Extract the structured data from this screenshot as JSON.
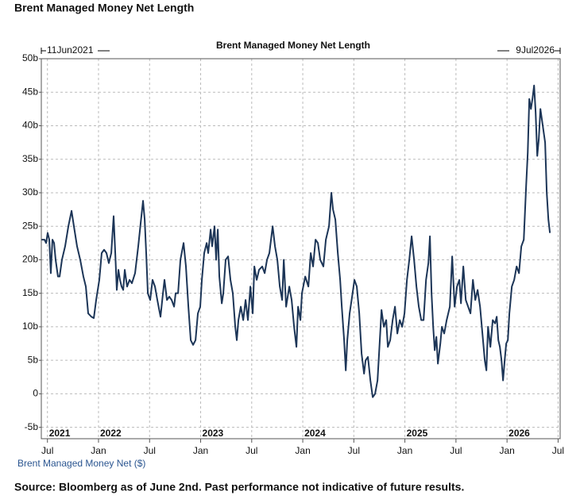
{
  "chart_data": {
    "type": "line",
    "header": "Brent Managed Money Net Length",
    "title": "Brent Managed Money Net Length",
    "start_label": "11Jun2021",
    "end_label": "9Jul2026",
    "source": "Source: Bloomberg as of June 2nd. Past performance not indicative of future results.",
    "xlim": [
      2021.44,
      2026.52
    ],
    "ylim": [
      -6.7,
      50
    ],
    "yticks": [
      {
        "value": 50,
        "label": "50b"
      },
      {
        "value": 45,
        "label": "45b"
      },
      {
        "value": 40,
        "label": "40b"
      },
      {
        "value": 35,
        "label": "35b"
      },
      {
        "value": 30,
        "label": "30b"
      },
      {
        "value": 25,
        "label": "25b"
      },
      {
        "value": 20,
        "label": "20b"
      },
      {
        "value": 15,
        "label": "15b"
      },
      {
        "value": 10,
        "label": "10b"
      },
      {
        "value": 5,
        "label": "5b"
      },
      0,
      {
        "value": -5,
        "label": "-5b"
      }
    ],
    "xticks": [
      {
        "value": 2021.5,
        "label": "Jul"
      },
      {
        "value": 2022,
        "label": "Jan"
      },
      {
        "value": 2022.5,
        "label": "Jul"
      },
      {
        "value": 2023,
        "label": "Jan"
      },
      {
        "value": 2023.5,
        "label": "Jul"
      },
      {
        "value": 2024,
        "label": "Jan"
      },
      {
        "value": 2024.5,
        "label": "Jul"
      },
      {
        "value": 2025,
        "label": "Jan"
      },
      {
        "value": 2025.5,
        "label": "Jul"
      },
      {
        "value": 2026,
        "label": "Jan"
      },
      {
        "value": 2026.5,
        "label": "Jul"
      }
    ],
    "year_ticks": [
      {
        "value": 2021.5,
        "label": "2021"
      },
      2022,
      2023,
      2024,
      2025,
      2026
    ],
    "grid": true,
    "x": [
      2021.44,
      2021.471,
      2021.487,
      2021.502,
      2021.518,
      2021.533,
      2021.549,
      2021.565,
      2021.58,
      2021.603,
      2021.619,
      2021.642,
      2021.673,
      2021.705,
      2021.736,
      2021.759,
      2021.79,
      2021.821,
      2021.852,
      2021.876,
      2021.899,
      2021.93,
      2021.954,
      2021.977,
      2022.008,
      2022.031,
      2022.055,
      2022.078,
      2022.101,
      2022.125,
      2022.148,
      2022.164,
      2022.179,
      2022.195,
      2022.21,
      2022.226,
      2022.242,
      2022.257,
      2022.28,
      2022.304,
      2022.327,
      2022.358,
      2022.389,
      2022.413,
      2022.436,
      2022.452,
      2022.467,
      2022.483,
      2022.506,
      2022.529,
      2022.553,
      2022.576,
      2022.607,
      2022.631,
      2022.646,
      2022.67,
      2022.693,
      2022.716,
      2022.74,
      2022.755,
      2022.779,
      2022.802,
      2022.833,
      2022.856,
      2022.88,
      2022.903,
      2022.926,
      2022.95,
      2022.973,
      2022.996,
      2023.012,
      2023.035,
      2023.059,
      2023.074,
      2023.098,
      2023.113,
      2023.136,
      2023.152,
      2023.168,
      2023.183,
      2023.207,
      2023.222,
      2023.245,
      2023.269,
      2023.292,
      2023.315,
      2023.339,
      2023.354,
      2023.37,
      2023.393,
      2023.417,
      2023.44,
      2023.463,
      2023.487,
      2023.51,
      2023.526,
      2023.549,
      2023.572,
      2023.603,
      2023.627,
      2023.65,
      2023.673,
      2023.705,
      2023.728,
      2023.751,
      2023.775,
      2023.798,
      2023.814,
      2023.837,
      2023.868,
      2023.891,
      2023.915,
      2023.938,
      2023.954,
      2023.977,
      2023.992,
      2024.024,
      2024.055,
      2024.078,
      2024.101,
      2024.125,
      2024.148,
      2024.171,
      2024.202,
      2024.226,
      2024.257,
      2024.28,
      2024.296,
      2024.319,
      2024.343,
      2024.366,
      2024.382,
      2024.405,
      2024.421,
      2024.436,
      2024.459,
      2024.483,
      2024.506,
      2024.529,
      2024.553,
      2024.576,
      2024.6,
      2024.615,
      2024.638,
      2024.662,
      2024.685,
      2024.708,
      2024.732,
      2024.747,
      2024.771,
      2024.794,
      2024.817,
      2024.833,
      2024.856,
      2024.88,
      2024.903,
      2024.926,
      2024.95,
      2024.973,
      2024.996,
      2025.02,
      2025.043,
      2025.066,
      2025.09,
      2025.113,
      2025.136,
      2025.16,
      2025.183,
      2025.207,
      2025.23,
      2025.245,
      2025.261,
      2025.277,
      2025.292,
      2025.308,
      2025.323,
      2025.347,
      2025.362,
      2025.385,
      2025.409,
      2025.44,
      2025.463,
      2025.487,
      2025.51,
      2025.533,
      2025.549,
      2025.572,
      2025.596,
      2025.619,
      2025.642,
      2025.666,
      2025.689,
      2025.712,
      2025.736,
      2025.759,
      2025.782,
      2025.798,
      2025.814,
      2025.837,
      2025.86,
      2025.883,
      2025.899,
      2025.915,
      2025.93,
      2025.946,
      2025.961,
      2025.977,
      2025.992,
      2026.008,
      2026.023,
      2026.047,
      2026.07,
      2026.094,
      2026.117,
      2026.14,
      2026.164,
      2026.187,
      2026.203,
      2026.218,
      2026.234,
      2026.249,
      2026.265,
      2026.28,
      2026.296,
      2026.311,
      2026.327,
      2026.35,
      2026.373,
      2026.389,
      2026.405,
      2026.42
    ],
    "series": [
      {
        "name": "Brent Managed Money Net ($)",
        "color": "#1c3557",
        "values": [
          23,
          23,
          22.5,
          24,
          23,
          18,
          23,
          22.5,
          20,
          17.5,
          17.5,
          20,
          22,
          25,
          27.3,
          25,
          22,
          20,
          17.5,
          16,
          12,
          11.5,
          11.3,
          14,
          17,
          21,
          21.5,
          21,
          19.5,
          21,
          26.5,
          21,
          15.5,
          18.5,
          17,
          16,
          15.5,
          18.5,
          16,
          17,
          16.5,
          18,
          22,
          25.5,
          28.8,
          26,
          21,
          15,
          14,
          17,
          16,
          14,
          11.5,
          15,
          17,
          14,
          14.5,
          14,
          13,
          15,
          15,
          20,
          22.5,
          19,
          13,
          8,
          7.3,
          8,
          12,
          13,
          17,
          21,
          22.5,
          21,
          24.5,
          22,
          25,
          20,
          24.5,
          17.5,
          13.5,
          15,
          20,
          20.5,
          17,
          15,
          10,
          8,
          11,
          13,
          11,
          14,
          11,
          16,
          12,
          19,
          17,
          18.5,
          19,
          18,
          20,
          21,
          25,
          22,
          20,
          16,
          14,
          20,
          13,
          16,
          14,
          10,
          7,
          13,
          11,
          15,
          17.5,
          16,
          21,
          19,
          23,
          22.5,
          20,
          19,
          23,
          25,
          30,
          27.5,
          26,
          21,
          17,
          13,
          8,
          3.5,
          8,
          12,
          14.5,
          17,
          16,
          12,
          6,
          3,
          5,
          5.5,
          2,
          -0.5,
          0,
          2,
          6,
          12.5,
          10,
          11,
          7,
          8,
          11,
          13,
          9,
          11,
          10,
          12,
          17,
          20,
          23.5,
          20,
          16,
          13,
          11,
          11,
          17,
          19.5,
          23.5,
          15,
          10,
          6.5,
          8.5,
          4.5,
          7.5,
          10,
          9,
          11,
          13,
          20.5,
          13,
          16,
          17,
          13.5,
          19,
          14,
          13,
          12,
          17,
          14,
          15.5,
          13,
          9,
          5,
          3.5,
          10,
          7,
          11,
          10.5,
          11.5,
          8,
          7,
          5,
          2,
          5,
          7.5,
          8,
          12,
          16,
          17,
          19,
          18,
          22,
          23,
          31,
          36,
          44,
          42.5,
          44,
          46,
          42,
          35.5,
          38,
          42.5,
          40,
          37.5,
          30,
          26,
          24
        ]
      }
    ]
  }
}
